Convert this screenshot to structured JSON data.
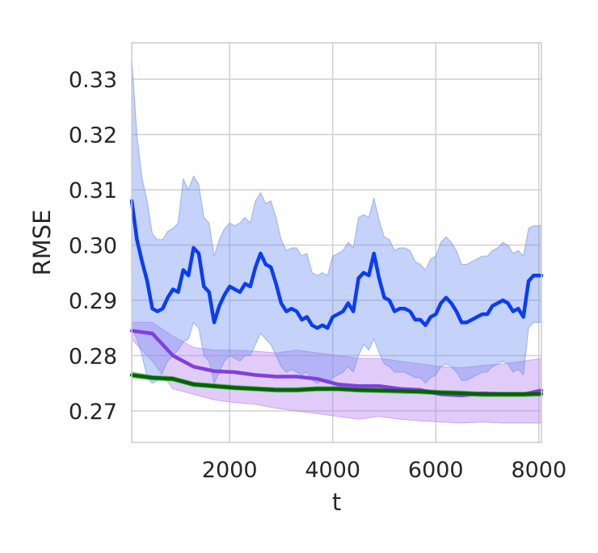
{
  "chart_data": {
    "type": "line",
    "title": "",
    "xlabel": "t",
    "ylabel": "RMSE",
    "xlim": [
      100,
      8050
    ],
    "ylim": [
      0.2643,
      0.3366
    ],
    "x_ticks": [
      2000,
      4000,
      6000,
      8000
    ],
    "y_ticks": [
      0.27,
      0.28,
      0.29,
      0.3,
      0.31,
      0.32,
      0.33
    ],
    "x_tick_labels": [
      "2000",
      "4000",
      "6000",
      "8000"
    ],
    "y_tick_labels": [
      "0.27",
      "0.28",
      "0.29",
      "0.30",
      "0.31",
      "0.32",
      "0.33"
    ],
    "grid": true,
    "legend": "none",
    "series": [
      {
        "color": "#7f3fe0",
        "band_color": "#b57ff0",
        "x": [
          100,
          500,
          900,
          1300,
          1700,
          2100,
          2500,
          2900,
          3300,
          3700,
          4100,
          4500,
          4900,
          5300,
          5700,
          6100,
          6500,
          6900,
          7300,
          7700,
          8050
        ],
        "values": [
          0.2845,
          0.284,
          0.28,
          0.278,
          0.2772,
          0.277,
          0.2765,
          0.2762,
          0.2762,
          0.2758,
          0.2748,
          0.2745,
          0.2745,
          0.274,
          0.2738,
          0.273,
          0.2728,
          0.2732,
          0.273,
          0.273,
          0.2737
        ],
        "lower": [
          0.283,
          0.279,
          0.274,
          0.273,
          0.272,
          0.2715,
          0.2712,
          0.2705,
          0.27,
          0.2695,
          0.269,
          0.2685,
          0.269,
          0.2685,
          0.2682,
          0.268,
          0.2678,
          0.268,
          0.2678,
          0.2678,
          0.2678
        ],
        "upper": [
          0.286,
          0.286,
          0.2835,
          0.2815,
          0.281,
          0.281,
          0.2808,
          0.2805,
          0.281,
          0.2805,
          0.28,
          0.2795,
          0.2795,
          0.279,
          0.2785,
          0.278,
          0.2778,
          0.2782,
          0.2785,
          0.279,
          0.2795
        ]
      },
      {
        "color": "#006400",
        "band_color": "#2ca02c",
        "x": [
          100,
          500,
          900,
          1300,
          1700,
          2100,
          2500,
          2900,
          3300,
          3700,
          4100,
          4500,
          4900,
          5300,
          5700,
          6100,
          6500,
          6900,
          7300,
          7700,
          8050
        ],
        "values": [
          0.2765,
          0.276,
          0.2758,
          0.2748,
          0.2745,
          0.2742,
          0.274,
          0.2738,
          0.2738,
          0.274,
          0.274,
          0.2738,
          0.2737,
          0.2736,
          0.2735,
          0.2733,
          0.2732,
          0.273,
          0.273,
          0.273,
          0.2731
        ],
        "lower": [
          0.276,
          0.2756,
          0.2754,
          0.2744,
          0.2741,
          0.2738,
          0.2736,
          0.2734,
          0.2734,
          0.2736,
          0.2736,
          0.2734,
          0.2733,
          0.2732,
          0.2731,
          0.2729,
          0.2728,
          0.2726,
          0.2726,
          0.2726,
          0.2727
        ],
        "upper": [
          0.277,
          0.2764,
          0.2762,
          0.2752,
          0.2749,
          0.2746,
          0.2744,
          0.2742,
          0.2742,
          0.2744,
          0.2744,
          0.2742,
          0.2741,
          0.274,
          0.2739,
          0.2737,
          0.2736,
          0.2734,
          0.2734,
          0.2734,
          0.2735
        ]
      },
      {
        "color": "#0a3df5",
        "band_color": "#6f8ef0",
        "x": [
          100,
          200,
          300,
          400,
          500,
          600,
          700,
          800,
          900,
          1000,
          1100,
          1200,
          1300,
          1400,
          1500,
          1600,
          1700,
          1800,
          1900,
          2000,
          2100,
          2200,
          2300,
          2400,
          2500,
          2600,
          2700,
          2800,
          2900,
          3000,
          3100,
          3200,
          3300,
          3400,
          3500,
          3600,
          3700,
          3800,
          3900,
          4000,
          4100,
          4200,
          4300,
          4400,
          4500,
          4600,
          4700,
          4800,
          4900,
          5000,
          5100,
          5200,
          5300,
          5400,
          5500,
          5600,
          5700,
          5800,
          5900,
          6000,
          6100,
          6200,
          6300,
          6400,
          6500,
          6600,
          6700,
          6800,
          6900,
          7000,
          7100,
          7200,
          7300,
          7400,
          7500,
          7600,
          7700,
          7800,
          7900,
          8050
        ],
        "values": [
          0.308,
          0.301,
          0.297,
          0.2935,
          0.2885,
          0.288,
          0.2885,
          0.2905,
          0.292,
          0.2915,
          0.2955,
          0.2945,
          0.2995,
          0.2985,
          0.2925,
          0.2915,
          0.286,
          0.289,
          0.291,
          0.2925,
          0.292,
          0.2915,
          0.293,
          0.2925,
          0.296,
          0.2985,
          0.2965,
          0.296,
          0.293,
          0.2895,
          0.288,
          0.2885,
          0.288,
          0.2865,
          0.287,
          0.2855,
          0.285,
          0.2855,
          0.285,
          0.287,
          0.2875,
          0.288,
          0.2895,
          0.288,
          0.294,
          0.295,
          0.2945,
          0.2985,
          0.294,
          0.2905,
          0.29,
          0.288,
          0.2885,
          0.2885,
          0.288,
          0.2865,
          0.2865,
          0.2855,
          0.287,
          0.2875,
          0.2895,
          0.2905,
          0.2895,
          0.288,
          0.286,
          0.286,
          0.2865,
          0.287,
          0.2875,
          0.2875,
          0.289,
          0.2895,
          0.29,
          0.2895,
          0.288,
          0.2885,
          0.287,
          0.2935,
          0.2945,
          0.2945
        ],
        "lower": [
          0.285,
          0.283,
          0.28,
          0.276,
          0.275,
          0.2755,
          0.277,
          0.279,
          0.28,
          0.281,
          0.2825,
          0.283,
          0.286,
          0.285,
          0.28,
          0.279,
          0.275,
          0.277,
          0.279,
          0.28,
          0.2795,
          0.279,
          0.28,
          0.28,
          0.282,
          0.284,
          0.283,
          0.282,
          0.28,
          0.278,
          0.277,
          0.2775,
          0.277,
          0.2765,
          0.277,
          0.2755,
          0.275,
          0.2755,
          0.275,
          0.276,
          0.2765,
          0.277,
          0.278,
          0.277,
          0.28,
          0.282,
          0.281,
          0.283,
          0.2805,
          0.2785,
          0.278,
          0.277,
          0.277,
          0.277,
          0.2765,
          0.276,
          0.276,
          0.275,
          0.276,
          0.2765,
          0.278,
          0.2785,
          0.278,
          0.277,
          0.2755,
          0.2755,
          0.276,
          0.2765,
          0.277,
          0.277,
          0.278,
          0.2785,
          0.279,
          0.2785,
          0.277,
          0.2775,
          0.2765,
          0.285,
          0.286,
          0.286
        ],
        "upper": [
          0.334,
          0.32,
          0.312,
          0.308,
          0.302,
          0.301,
          0.301,
          0.3025,
          0.303,
          0.304,
          0.312,
          0.31,
          0.3125,
          0.311,
          0.305,
          0.304,
          0.298,
          0.301,
          0.303,
          0.304,
          0.3035,
          0.304,
          0.305,
          0.304,
          0.308,
          0.3095,
          0.3075,
          0.308,
          0.305,
          0.301,
          0.299,
          0.2995,
          0.2995,
          0.298,
          0.2985,
          0.295,
          0.2945,
          0.295,
          0.2945,
          0.298,
          0.2985,
          0.299,
          0.3005,
          0.2995,
          0.305,
          0.3055,
          0.305,
          0.3085,
          0.3045,
          0.3015,
          0.301,
          0.299,
          0.2995,
          0.2995,
          0.299,
          0.297,
          0.2965,
          0.2955,
          0.2975,
          0.298,
          0.3005,
          0.3015,
          0.3005,
          0.299,
          0.2965,
          0.2965,
          0.297,
          0.2975,
          0.298,
          0.298,
          0.299,
          0.2995,
          0.3005,
          0.3,
          0.2985,
          0.299,
          0.298,
          0.303,
          0.3035,
          0.3035
        ]
      }
    ]
  }
}
